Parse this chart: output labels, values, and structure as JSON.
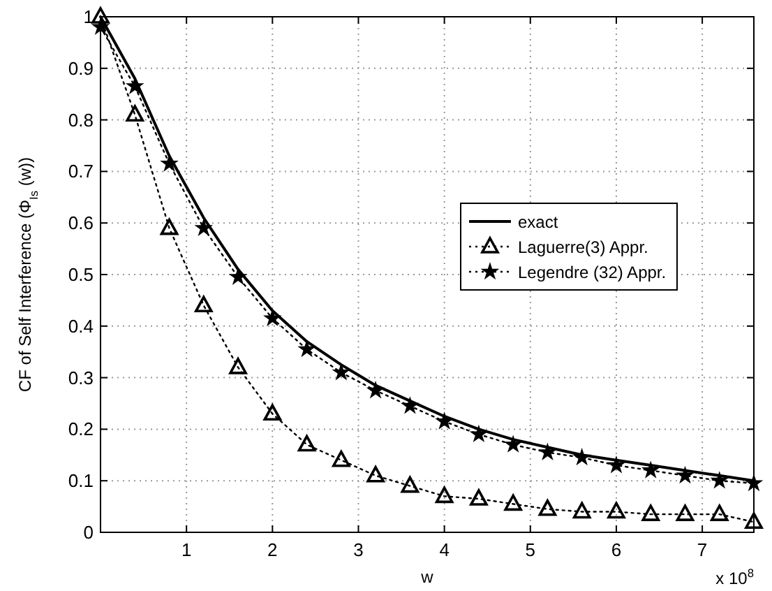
{
  "chart_data": {
    "type": "line",
    "xlabel": "w",
    "ylabel": "CF of Self Interference (Φ$_{Is}$ (w))",
    "annotations": [
      "x 10$^{8}$"
    ],
    "x": [
      0,
      0.4,
      0.8,
      1.2,
      1.6,
      2,
      2.4,
      2.8,
      3.2,
      3.6,
      4,
      4.4,
      4.8,
      5.2,
      5.6,
      6,
      6.4,
      6.8,
      7.2,
      7.6
    ],
    "series": [
      {
        "name": "exact",
        "color": "#000000",
        "marker": "none",
        "line_style": "solid",
        "values": [
          1.0,
          0.88,
          0.73,
          0.61,
          0.51,
          0.43,
          0.37,
          0.325,
          0.285,
          0.255,
          0.225,
          0.2,
          0.18,
          0.165,
          0.15,
          0.14,
          0.13,
          0.12,
          0.11,
          0.1
        ]
      },
      {
        "name": "Laguerre(3) Appr.",
        "color": "#000000",
        "marker": "triangle",
        "line_style": "dotted",
        "values": [
          1.0,
          0.81,
          0.59,
          0.44,
          0.32,
          0.23,
          0.17,
          0.14,
          0.11,
          0.09,
          0.07,
          0.065,
          0.055,
          0.045,
          0.04,
          0.04,
          0.035,
          0.035,
          0.035,
          0.02
        ]
      },
      {
        "name": "Legendre (32) Appr.",
        "color": "#000000",
        "marker": "star",
        "line_style": "dotted",
        "values": [
          0.98,
          0.865,
          0.715,
          0.59,
          0.495,
          0.415,
          0.355,
          0.31,
          0.275,
          0.245,
          0.215,
          0.19,
          0.17,
          0.155,
          0.145,
          0.13,
          0.12,
          0.11,
          0.1,
          0.095
        ]
      }
    ],
    "xlim": [
      0,
      7.6
    ],
    "xticks": [
      1,
      2,
      3,
      4,
      5,
      6,
      7
    ],
    "ylim": [
      0,
      1
    ],
    "yticks": [
      0,
      0.1,
      0.2,
      0.3,
      0.4,
      0.5,
      0.6,
      0.7,
      0.8,
      0.9,
      1
    ],
    "grid": true,
    "legend": "right"
  }
}
